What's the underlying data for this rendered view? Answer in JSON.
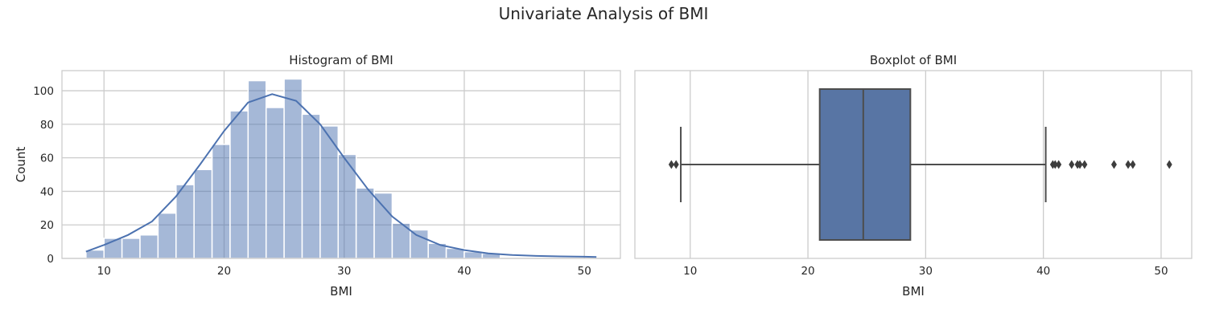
{
  "figure": {
    "title": "Univariate Analysis of BMI"
  },
  "chart_data": [
    {
      "type": "bar",
      "subtype": "histogram_with_kde",
      "title": "Histogram of BMI",
      "xlabel": "BMI",
      "ylabel": "Count",
      "xlim": [
        6.5,
        53.0
      ],
      "ylim": [
        0,
        112
      ],
      "xticks": [
        10,
        20,
        30,
        40,
        50
      ],
      "yticks": [
        0,
        20,
        40,
        60,
        80,
        100
      ],
      "grid": true,
      "color": "#4c72b0",
      "bin_edges": [
        8.5,
        10.0,
        11.5,
        13.0,
        14.5,
        16.0,
        17.5,
        19.0,
        20.5,
        22.0,
        23.5,
        25.0,
        26.5,
        28.0,
        29.5,
        31.0,
        32.5,
        34.0,
        35.5,
        37.0,
        38.5,
        40.0,
        41.5,
        43.0
      ],
      "counts": [
        5,
        12,
        12,
        14,
        27,
        44,
        53,
        68,
        88,
        106,
        90,
        107,
        86,
        79,
        62,
        42,
        39,
        21,
        17,
        9,
        6,
        4,
        3
      ],
      "kde": {
        "x": [
          8.5,
          10,
          12,
          14,
          16,
          18,
          20,
          22,
          24,
          26,
          28,
          30,
          32,
          34,
          36,
          38,
          40,
          42,
          44,
          46,
          48,
          50,
          51
        ],
        "y": [
          4,
          8,
          14,
          22,
          37,
          56,
          76,
          93,
          98,
          94,
          80,
          60,
          41,
          25,
          14,
          8,
          5,
          3,
          2,
          1.5,
          1.2,
          1,
          0.8
        ]
      }
    },
    {
      "type": "boxplot",
      "title": "Boxplot of BMI",
      "xlabel": "BMI",
      "xlim": [
        5.3,
        52.6
      ],
      "xticks": [
        10,
        20,
        30,
        40,
        50
      ],
      "grid": true,
      "color": "#4c72b0",
      "whisker_low": 9.2,
      "q1": 21.0,
      "median": 24.7,
      "q3": 28.7,
      "whisker_high": 40.2,
      "outliers": [
        8.4,
        8.8,
        40.8,
        41.0,
        41.3,
        42.4,
        42.9,
        43.1,
        43.5,
        46.0,
        47.2,
        47.6,
        50.7
      ]
    }
  ]
}
